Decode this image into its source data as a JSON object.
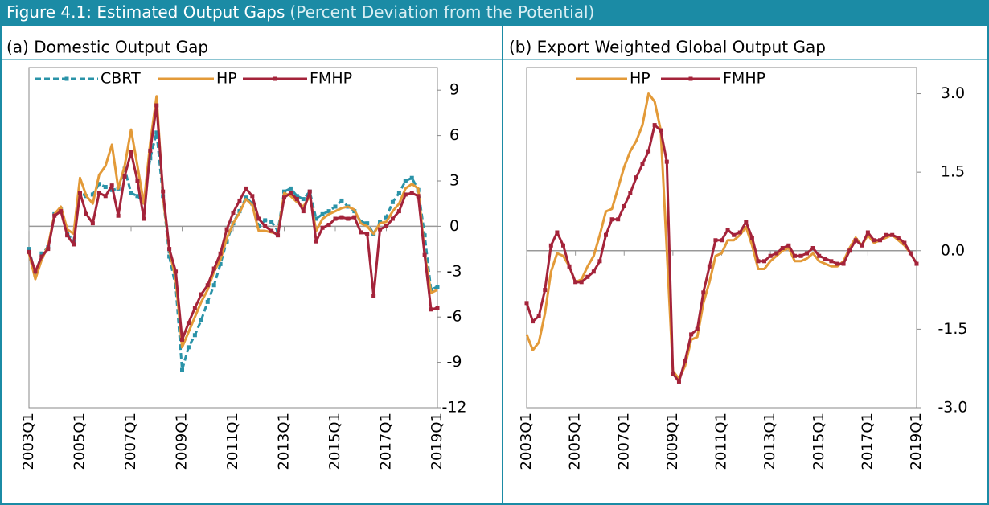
{
  "figure": {
    "title": "Figure 4.1: Estimated Output Gaps",
    "subtitle": "(Percent Deviation from the Potential)"
  },
  "chart_data": [
    {
      "type": "line",
      "title": "(a) Domestic Output Gap",
      "categories": [
        "2003Q1",
        null,
        null,
        null,
        null,
        null,
        null,
        null,
        "2005Q1",
        null,
        null,
        null,
        null,
        null,
        null,
        null,
        "2007Q1",
        null,
        null,
        null,
        null,
        null,
        null,
        null,
        "2009Q1",
        null,
        null,
        null,
        null,
        null,
        null,
        null,
        "2011Q1",
        null,
        null,
        null,
        null,
        null,
        null,
        null,
        "2013Q1",
        null,
        null,
        null,
        null,
        null,
        null,
        null,
        "2015Q1",
        null,
        null,
        null,
        null,
        null,
        null,
        null,
        "2017Q1",
        null,
        null,
        null,
        null,
        null,
        null,
        null,
        "2019Q1"
      ],
      "ylim": [
        -12,
        10.5
      ],
      "yticks": [
        -12,
        -9,
        -6,
        -3,
        0,
        3,
        6,
        9
      ],
      "series": [
        {
          "name": "CBRT",
          "color": "#2a93a8",
          "dash": true,
          "markers": true,
          "values": [
            -1.5,
            -3.2,
            -1.8,
            -1.4,
            0.8,
            1.1,
            -0.5,
            -1.0,
            2.2,
            2.0,
            2.1,
            2.8,
            2.6,
            2.4,
            2.5,
            3.8,
            2.2,
            2.0,
            1.6,
            4.5,
            6.2,
            2.0,
            -2.0,
            -4.0,
            -9.5,
            -8.0,
            -7.2,
            -6.2,
            -5.0,
            -3.9,
            -2.5,
            -1.0,
            0.2,
            1.0,
            1.9,
            1.5,
            0.0,
            0.4,
            0.3,
            -0.3,
            2.3,
            2.5,
            2.0,
            1.8,
            2.3,
            0.5,
            0.8,
            1.0,
            1.3,
            1.7,
            1.3,
            1.0,
            0.3,
            0.2,
            -0.5,
            0.3,
            0.6,
            1.6,
            2.2,
            3.0,
            3.2,
            2.4,
            -0.6,
            -4.2,
            -4.0
          ]
        },
        {
          "name": "HP",
          "color": "#e39a38",
          "dash": false,
          "markers": false,
          "values": [
            -1.8,
            -3.5,
            -2.2,
            -1.3,
            0.8,
            1.3,
            -0.2,
            -0.5,
            3.2,
            2.0,
            1.5,
            3.4,
            4.0,
            5.4,
            2.5,
            4.0,
            6.4,
            4.0,
            1.5,
            5.5,
            8.6,
            2.0,
            -1.6,
            -3.5,
            -8.0,
            -7.0,
            -6.0,
            -5.0,
            -4.2,
            -3.0,
            -2.2,
            -0.8,
            0.2,
            0.9,
            1.8,
            1.4,
            -0.3,
            -0.3,
            -0.4,
            -0.5,
            2.2,
            2.0,
            1.6,
            1.3,
            2.0,
            -0.3,
            0.5,
            0.8,
            1.0,
            1.2,
            1.3,
            1.1,
            0.2,
            0.0,
            -0.5,
            0.2,
            0.3,
            1.0,
            1.5,
            2.5,
            2.8,
            2.5,
            -1.8,
            -4.4,
            -4.2
          ]
        },
        {
          "name": "FMHP",
          "color": "#a4233a",
          "dash": false,
          "markers": true,
          "values": [
            -1.7,
            -3.0,
            -2.0,
            -1.5,
            0.7,
            1.0,
            -0.6,
            -1.2,
            2.2,
            0.8,
            0.2,
            2.2,
            2.0,
            2.7,
            0.7,
            3.3,
            4.9,
            3.0,
            0.5,
            5.0,
            8.0,
            2.3,
            -1.5,
            -3.0,
            -7.5,
            -6.4,
            -5.4,
            -4.5,
            -3.9,
            -2.8,
            -1.8,
            -0.2,
            0.9,
            1.7,
            2.5,
            2.0,
            0.5,
            0.0,
            -0.3,
            -0.6,
            1.9,
            2.2,
            1.8,
            1.0,
            2.3,
            -1.0,
            -0.1,
            0.1,
            0.5,
            0.6,
            0.5,
            0.6,
            -0.4,
            -0.5,
            -4.6,
            -0.2,
            0.0,
            0.5,
            1.0,
            2.1,
            2.2,
            2.0,
            -1.9,
            -5.5,
            -5.4
          ]
        }
      ]
    },
    {
      "type": "line",
      "title": "(b) Export Weighted Global Output Gap",
      "categories": [
        "2003Q1",
        null,
        null,
        null,
        null,
        null,
        null,
        null,
        "2005Q1",
        null,
        null,
        null,
        null,
        null,
        null,
        null,
        "2007Q1",
        null,
        null,
        null,
        null,
        null,
        null,
        null,
        "2009Q1",
        null,
        null,
        null,
        null,
        null,
        null,
        null,
        "2011Q1",
        null,
        null,
        null,
        null,
        null,
        null,
        null,
        "2013Q1",
        null,
        null,
        null,
        null,
        null,
        null,
        null,
        "2015Q1",
        null,
        null,
        null,
        null,
        null,
        null,
        null,
        "2017Q1",
        null,
        null,
        null,
        null,
        null,
        null,
        null,
        "2019Q1"
      ],
      "ylim": [
        -3,
        3.5
      ],
      "yticks": [
        {
          "value": -3,
          "label": "-3.0"
        },
        {
          "value": -1.5,
          "label": "-1.5"
        },
        {
          "value": 0,
          "label": "0.0"
        },
        {
          "value": 1.5,
          "label": "1.5"
        },
        {
          "value": 3,
          "label": "3.0"
        }
      ],
      "series": [
        {
          "name": "HP",
          "color": "#e39a38",
          "dash": false,
          "markers": false,
          "values": [
            -1.6,
            -1.9,
            -1.75,
            -1.2,
            -0.4,
            -0.05,
            -0.1,
            -0.3,
            -0.6,
            -0.55,
            -0.3,
            -0.1,
            0.3,
            0.75,
            0.8,
            1.2,
            1.6,
            1.9,
            2.1,
            2.4,
            3.0,
            2.85,
            2.3,
            0.0,
            -2.3,
            -2.45,
            -2.2,
            -1.7,
            -1.65,
            -1.0,
            -0.6,
            -0.1,
            -0.05,
            0.2,
            0.2,
            0.3,
            0.45,
            0.1,
            -0.35,
            -0.35,
            -0.2,
            -0.1,
            0.0,
            0.05,
            -0.2,
            -0.2,
            -0.15,
            -0.05,
            -0.2,
            -0.25,
            -0.3,
            -0.3,
            -0.2,
            0.05,
            0.25,
            0.1,
            0.3,
            0.15,
            0.2,
            0.25,
            0.3,
            0.2,
            0.1,
            -0.05,
            -0.25
          ]
        },
        {
          "name": "FMHP",
          "color": "#a4233a",
          "dash": false,
          "markers": true,
          "values": [
            -1.0,
            -1.35,
            -1.25,
            -0.75,
            0.1,
            0.35,
            0.1,
            -0.3,
            -0.6,
            -0.6,
            -0.5,
            -0.4,
            -0.2,
            0.3,
            0.6,
            0.6,
            0.85,
            1.1,
            1.4,
            1.65,
            1.9,
            2.4,
            2.3,
            1.7,
            -2.35,
            -2.5,
            -2.1,
            -1.6,
            -1.5,
            -0.8,
            -0.3,
            0.2,
            0.2,
            0.4,
            0.3,
            0.35,
            0.55,
            0.25,
            -0.2,
            -0.2,
            -0.1,
            -0.05,
            0.05,
            0.1,
            -0.1,
            -0.1,
            -0.05,
            0.05,
            -0.1,
            -0.15,
            -0.2,
            -0.25,
            -0.25,
            0.0,
            0.2,
            0.1,
            0.35,
            0.2,
            0.2,
            0.3,
            0.3,
            0.25,
            0.15,
            -0.05,
            -0.25
          ]
        }
      ]
    }
  ]
}
